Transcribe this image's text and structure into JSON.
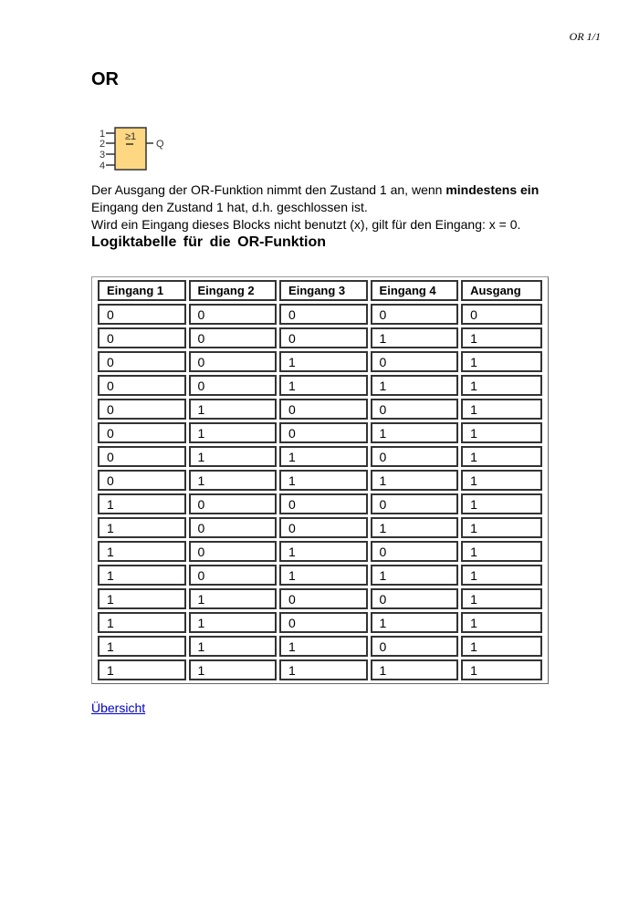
{
  "header": {
    "page_label": "OR 1/1"
  },
  "title": "OR",
  "symbol": {
    "inputs": [
      "1",
      "2",
      "3",
      "4"
    ],
    "function_label": "≥1",
    "output_label": "Q",
    "fill_color": "#fdd782"
  },
  "description": {
    "line1_prefix": "Der Ausgang der OR-Funktion nimmt den Zustand 1 an, wenn ",
    "line1_bold": "mindestens ein",
    "line1_suffix": " Eingang den Zustand 1 hat, d.h. geschlossen ist.",
    "line2": "Wird ein Eingang dieses Blocks nicht benutzt (x), gilt für den Eingang: x = 0."
  },
  "table_title": "Logiktabelle  für  die  OR-Funktion",
  "table": {
    "headers": [
      "Eingang 1",
      "Eingang 2",
      "Eingang 3",
      "Eingang 4",
      "Ausgang"
    ],
    "rows": [
      [
        "0",
        "0",
        "0",
        "0",
        "0"
      ],
      [
        "0",
        "0",
        "0",
        "1",
        "1"
      ],
      [
        "0",
        "0",
        "1",
        "0",
        "1"
      ],
      [
        "0",
        "0",
        "1",
        "1",
        "1"
      ],
      [
        "0",
        "1",
        "0",
        "0",
        "1"
      ],
      [
        "0",
        "1",
        "0",
        "1",
        "1"
      ],
      [
        "0",
        "1",
        "1",
        "0",
        "1"
      ],
      [
        "0",
        "1",
        "1",
        "1",
        "1"
      ],
      [
        "1",
        "0",
        "0",
        "0",
        "1"
      ],
      [
        "1",
        "0",
        "0",
        "1",
        "1"
      ],
      [
        "1",
        "0",
        "1",
        "0",
        "1"
      ],
      [
        "1",
        "0",
        "1",
        "1",
        "1"
      ],
      [
        "1",
        "1",
        "0",
        "0",
        "1"
      ],
      [
        "1",
        "1",
        "0",
        "1",
        "1"
      ],
      [
        "1",
        "1",
        "1",
        "0",
        "1"
      ],
      [
        "1",
        "1",
        "1",
        "1",
        "1"
      ]
    ]
  },
  "link": {
    "label": "Übersicht "
  }
}
